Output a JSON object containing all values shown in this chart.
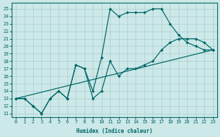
{
  "xlabel": "Humidex (Indice chaleur)",
  "xlim": [
    -0.5,
    23.5
  ],
  "ylim": [
    10.5,
    25.8
  ],
  "xticks": [
    0,
    1,
    2,
    3,
    4,
    5,
    6,
    7,
    8,
    9,
    10,
    11,
    12,
    13,
    14,
    15,
    16,
    17,
    18,
    19,
    20,
    21,
    22,
    23
  ],
  "yticks": [
    11,
    12,
    13,
    14,
    15,
    16,
    17,
    18,
    19,
    20,
    21,
    22,
    23,
    24,
    25
  ],
  "bg_color": "#cce8e8",
  "grid_color": "#aacccc",
  "line_color": "#006666",
  "line1_x": [
    0,
    1,
    2,
    3,
    4,
    5,
    6,
    7,
    8,
    9,
    10,
    11,
    12,
    13,
    14,
    15,
    16,
    17,
    18,
    19,
    20,
    21,
    22,
    23
  ],
  "line1_y": [
    13,
    13,
    12,
    11,
    13,
    14,
    13,
    17.5,
    17,
    14,
    18.5,
    25,
    24,
    24.5,
    24.5,
    24.5,
    25,
    25,
    23,
    21.5,
    20.5,
    20,
    19.5,
    19.5
  ],
  "line2_x": [
    0,
    23
  ],
  "line2_y": [
    13,
    19.5
  ],
  "line3_x": [
    0,
    1,
    2,
    3,
    4,
    5,
    6,
    7,
    8,
    9,
    10,
    11,
    12,
    13,
    14,
    15,
    16,
    17,
    18,
    19,
    20,
    21,
    22,
    23
  ],
  "line3_y": [
    13,
    13,
    12,
    11,
    13,
    14,
    13,
    17.5,
    17,
    13,
    14,
    18,
    16,
    17,
    17,
    17.5,
    18,
    19.5,
    20.5,
    21,
    21,
    21,
    20.5,
    19.5
  ]
}
